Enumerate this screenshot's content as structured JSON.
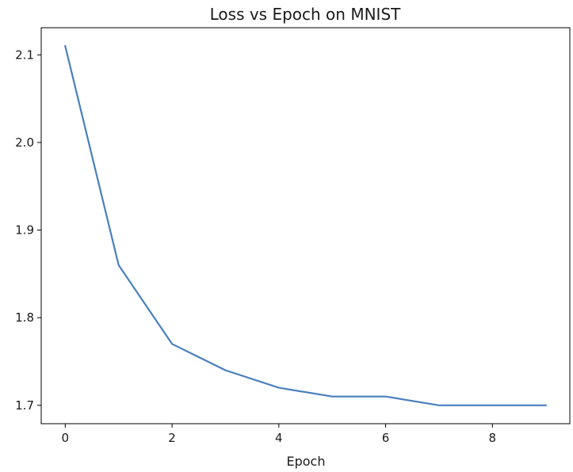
{
  "chart_data": {
    "type": "line",
    "title": "Loss vs Epoch on MNIST",
    "xlabel": "Epoch",
    "ylabel": "",
    "x": [
      0,
      1,
      2,
      3,
      4,
      5,
      6,
      7,
      8,
      9
    ],
    "series": [
      {
        "values": [
          2.11,
          1.86,
          1.77,
          1.74,
          1.72,
          1.71,
          1.71,
          1.7,
          1.7,
          1.7
        ]
      }
    ],
    "xlim": [
      -0.45,
      9.45
    ],
    "ylim": [
      1.679,
      2.131
    ],
    "xticks": [
      0,
      2,
      4,
      6,
      8
    ],
    "xtick_labels": [
      "0",
      "2",
      "4",
      "6",
      "8"
    ],
    "yticks": [
      1.7,
      1.8,
      1.9,
      2.0,
      2.1
    ],
    "ytick_labels": [
      "1.7",
      "1.8",
      "1.9",
      "2.0",
      "2.1"
    ],
    "grid": false,
    "line_color": "#4a7fbd"
  }
}
